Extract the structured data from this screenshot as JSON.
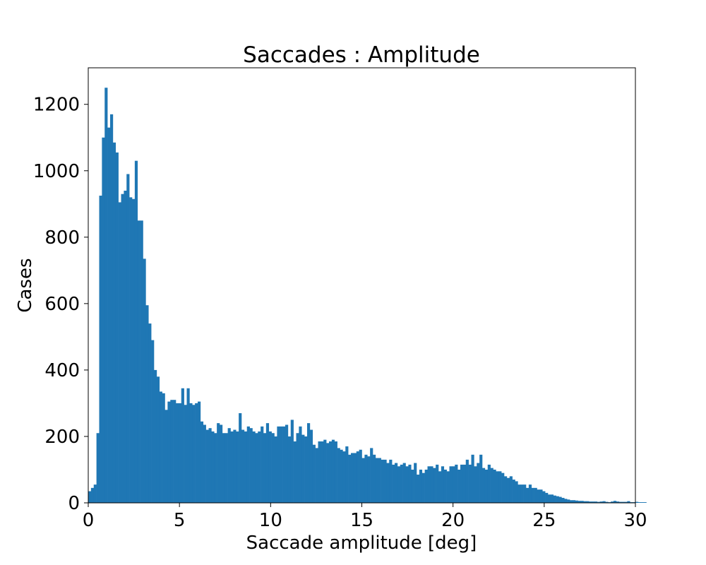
{
  "colors": {
    "bar": "#1f77b4",
    "axis": "#000000",
    "background": "#ffffff"
  },
  "chart_data": {
    "type": "bar",
    "title": "Saccades : Amplitude",
    "xlabel": "Saccade amplitude [deg]",
    "ylabel": "Cases",
    "xlim": [
      0,
      30
    ],
    "ylim": [
      0,
      1310
    ],
    "xticks": [
      0,
      5,
      10,
      15,
      20,
      25,
      30
    ],
    "xtick_labels": [
      "0",
      "5",
      "10",
      "15",
      "20",
      "25",
      "30"
    ],
    "yticks": [
      0,
      200,
      400,
      600,
      800,
      1000,
      1200
    ],
    "ytick_labels": [
      "0",
      "200",
      "400",
      "600",
      "800",
      "1000",
      "1200"
    ],
    "grid": false,
    "bin_start": 0,
    "bin_width": 0.15,
    "values": [
      35,
      45,
      55,
      210,
      925,
      1100,
      1250,
      1130,
      1170,
      1085,
      1055,
      905,
      930,
      940,
      990,
      920,
      915,
      1030,
      850,
      850,
      735,
      595,
      540,
      490,
      400,
      380,
      335,
      330,
      280,
      305,
      310,
      310,
      300,
      300,
      345,
      295,
      345,
      300,
      295,
      300,
      305,
      245,
      235,
      220,
      225,
      215,
      210,
      240,
      235,
      210,
      210,
      225,
      215,
      220,
      215,
      270,
      220,
      215,
      230,
      225,
      215,
      210,
      215,
      230,
      210,
      240,
      215,
      210,
      200,
      230,
      230,
      230,
      235,
      200,
      250,
      185,
      210,
      230,
      205,
      200,
      240,
      220,
      175,
      165,
      185,
      185,
      190,
      180,
      185,
      190,
      185,
      165,
      160,
      155,
      170,
      145,
      150,
      150,
      155,
      160,
      135,
      145,
      140,
      165,
      145,
      135,
      135,
      130,
      130,
      120,
      130,
      115,
      120,
      110,
      115,
      120,
      110,
      115,
      100,
      120,
      85,
      100,
      90,
      100,
      110,
      110,
      105,
      115,
      95,
      110,
      100,
      95,
      110,
      110,
      115,
      100,
      115,
      115,
      130,
      115,
      145,
      110,
      120,
      145,
      105,
      100,
      115,
      105,
      100,
      95,
      95,
      90,
      80,
      75,
      80,
      70,
      65,
      55,
      55,
      55,
      45,
      55,
      45,
      45,
      40,
      40,
      35,
      30,
      25,
      25,
      22,
      20,
      18,
      15,
      12,
      10,
      8,
      8,
      7,
      6,
      6,
      5,
      5,
      4,
      4,
      4,
      3,
      4,
      5,
      3,
      2,
      4,
      6,
      4,
      3,
      3,
      3,
      5,
      2,
      2,
      3,
      2,
      2,
      2,
      0,
      0,
      0,
      0,
      0,
      0,
      0,
      0,
      0,
      0,
      0,
      0,
      0,
      0,
      0,
      0,
      0,
      0,
      0
    ]
  }
}
